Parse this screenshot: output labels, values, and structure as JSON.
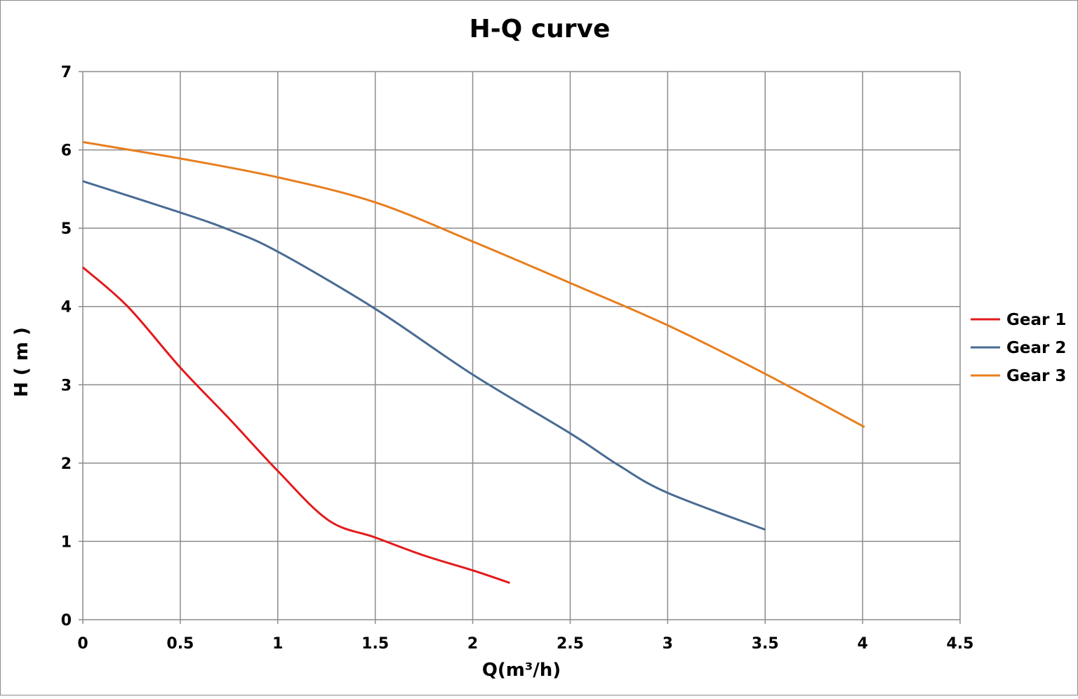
{
  "chart_data": {
    "type": "line",
    "title": "H-Q  curve",
    "xlabel": "Q(m³/h)",
    "ylabel": "H ( m )",
    "xlim": [
      0,
      4.5
    ],
    "ylim": [
      0,
      7
    ],
    "xticks": [
      "0",
      "0.5",
      "1",
      "1.5",
      "2",
      "2.5",
      "3",
      "3.5",
      "4",
      "4.5"
    ],
    "yticks": [
      "0",
      "1",
      "2",
      "3",
      "4",
      "5",
      "6",
      "7"
    ],
    "grid": true,
    "legend_position": "right",
    "series": [
      {
        "name": "Gear 1",
        "color": "#e31a1c",
        "points": [
          [
            0,
            4.5
          ],
          [
            0.23,
            4.0
          ],
          [
            0.5,
            3.22
          ],
          [
            0.75,
            2.57
          ],
          [
            1.0,
            1.9
          ],
          [
            1.26,
            1.27
          ],
          [
            1.5,
            1.05
          ],
          [
            1.75,
            0.82
          ],
          [
            2.0,
            0.63
          ],
          [
            2.19,
            0.47
          ]
        ]
      },
      {
        "name": "Gear 2",
        "color": "#4a6b94",
        "points": [
          [
            0,
            5.6
          ],
          [
            0.5,
            5.2
          ],
          [
            0.75,
            4.98
          ],
          [
            1.0,
            4.7
          ],
          [
            1.5,
            3.97
          ],
          [
            2.0,
            3.13
          ],
          [
            2.5,
            2.38
          ],
          [
            2.75,
            1.97
          ],
          [
            3.0,
            1.62
          ],
          [
            3.5,
            1.15
          ]
        ]
      },
      {
        "name": "Gear 3",
        "color": "#e87e1e",
        "points": [
          [
            0,
            6.1
          ],
          [
            0.5,
            5.89
          ],
          [
            1.0,
            5.65
          ],
          [
            1.5,
            5.33
          ],
          [
            2.0,
            4.83
          ],
          [
            2.5,
            4.3
          ],
          [
            3.0,
            3.76
          ],
          [
            3.5,
            3.14
          ],
          [
            4.01,
            2.46
          ]
        ]
      }
    ]
  }
}
